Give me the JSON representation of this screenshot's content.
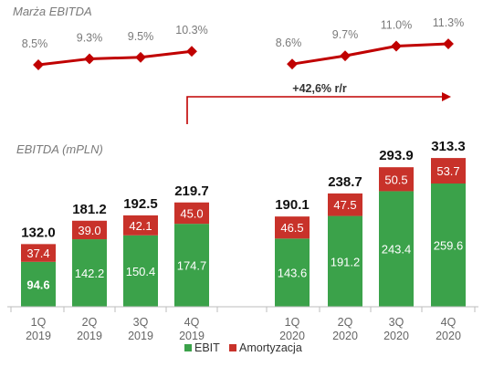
{
  "chart_data": [
    {
      "type": "line",
      "title": "Marża EBITDA",
      "series": [
        {
          "groups": [
            {
              "categories": [
                "1Q 2019",
                "2Q 2019",
                "3Q 2019",
                "4Q 2019"
              ],
              "values": [
                8.5,
                9.3,
                9.5,
                10.3
              ],
              "labels": [
                "8.5%",
                "9.3%",
                "9.5%",
                "10.3%"
              ]
            },
            {
              "categories": [
                "1Q 2020",
                "2Q 2020",
                "3Q 2020",
                "4Q 2020"
              ],
              "values": [
                8.6,
                9.7,
                11.0,
                11.3
              ],
              "labels": [
                "8.6%",
                "9.7%",
                "11.0%",
                "11.3%"
              ]
            }
          ]
        }
      ],
      "colors": {
        "line": "#c00000"
      }
    },
    {
      "type": "bar",
      "stacked": true,
      "title": "EBITDA (mPLN)",
      "categories": [
        {
          "q": "1Q",
          "y": "2019"
        },
        {
          "q": "2Q",
          "y": "2019"
        },
        {
          "q": "3Q",
          "y": "2019"
        },
        {
          "q": "4Q",
          "y": "2019"
        },
        {
          "q": "1Q",
          "y": "2020"
        },
        {
          "q": "2Q",
          "y": "2020"
        },
        {
          "q": "3Q",
          "y": "2020"
        },
        {
          "q": "4Q",
          "y": "2020"
        }
      ],
      "series": [
        {
          "name": "EBIT",
          "color": "#3ba24a",
          "values": [
            94.6,
            142.2,
            150.4,
            174.7,
            143.6,
            191.2,
            243.4,
            259.6
          ],
          "labels": [
            "94.6",
            "142.2",
            "150.4",
            "174.7",
            "143.6",
            "191.2",
            "243.4",
            "259.6"
          ]
        },
        {
          "name": "Amortyzacja",
          "color": "#c8322a",
          "values": [
            37.4,
            39.0,
            42.1,
            45.0,
            46.5,
            47.5,
            50.5,
            53.7
          ],
          "labels": [
            "37.4",
            "39.0",
            "42.1",
            "45.0",
            "46.5",
            "47.5",
            "50.5",
            "53.7"
          ]
        }
      ],
      "totals": [
        "132.0",
        "181.2",
        "192.5",
        "219.7",
        "190.1",
        "238.7",
        "293.9",
        "313.3"
      ],
      "annotation": "+42,6% r/r",
      "legend": "bottom-center"
    }
  ]
}
